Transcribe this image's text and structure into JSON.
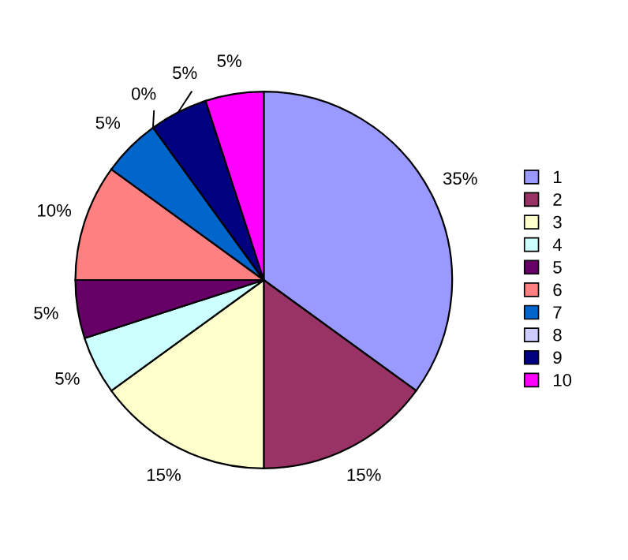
{
  "chart_data": {
    "type": "pie",
    "categories": [
      "1",
      "2",
      "3",
      "4",
      "5",
      "6",
      "7",
      "8",
      "9",
      "10"
    ],
    "values": [
      35,
      15,
      15,
      5,
      5,
      10,
      5,
      0,
      5,
      5
    ],
    "value_labels": [
      "35%",
      "15%",
      "15%",
      "5%",
      "5%",
      "10%",
      "5%",
      "0%",
      "5%",
      "5%"
    ],
    "colors": [
      "#9999ff",
      "#993366",
      "#ffffcc",
      "#ccffff",
      "#660066",
      "#ff8080",
      "#0066cc",
      "#ccccff",
      "#000080",
      "#ff00ff"
    ],
    "legend": "right"
  }
}
